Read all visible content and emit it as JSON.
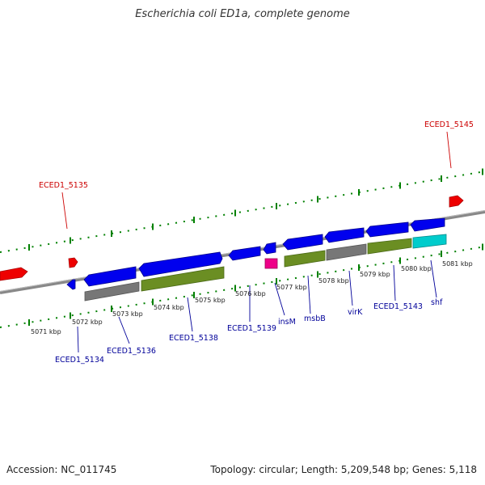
{
  "title": "Escherichia coli ED1a, complete genome",
  "footer": {
    "accession": "Accession: NC_011745",
    "info": "Topology: circular; Length: 5,209,548 bp; Genes: 5,118"
  },
  "colors": {
    "backbone": "#888888",
    "tick": "#008000",
    "red_gene": "#ff0000",
    "blue_gene": "#0000ee",
    "magenta_gene": "#ee0088",
    "grey_block": "#777777",
    "olive_block": "#6b8e23",
    "cyan_block": "#00cccc",
    "label_blue": "#000099",
    "label_red": "#cc0000"
  },
  "kbp_labels": [
    "5071 kbp",
    "5072 kbp",
    "5073 kbp",
    "5074 kbp",
    "5075 kbp",
    "5076 kbp",
    "5077 kbp",
    "5078 kbp",
    "5079 kbp",
    "5080 kbp",
    "5081 kbp"
  ],
  "gene_labels": {
    "top": [
      "ECED1_5135",
      "ECED1_5145"
    ],
    "bottom": [
      "ECED1_5134",
      "ECED1_5136",
      "ECED1_5138",
      "ECED1_5139",
      "insM",
      "msbB",
      "virK",
      "ECED1_5143",
      "shf"
    ]
  }
}
